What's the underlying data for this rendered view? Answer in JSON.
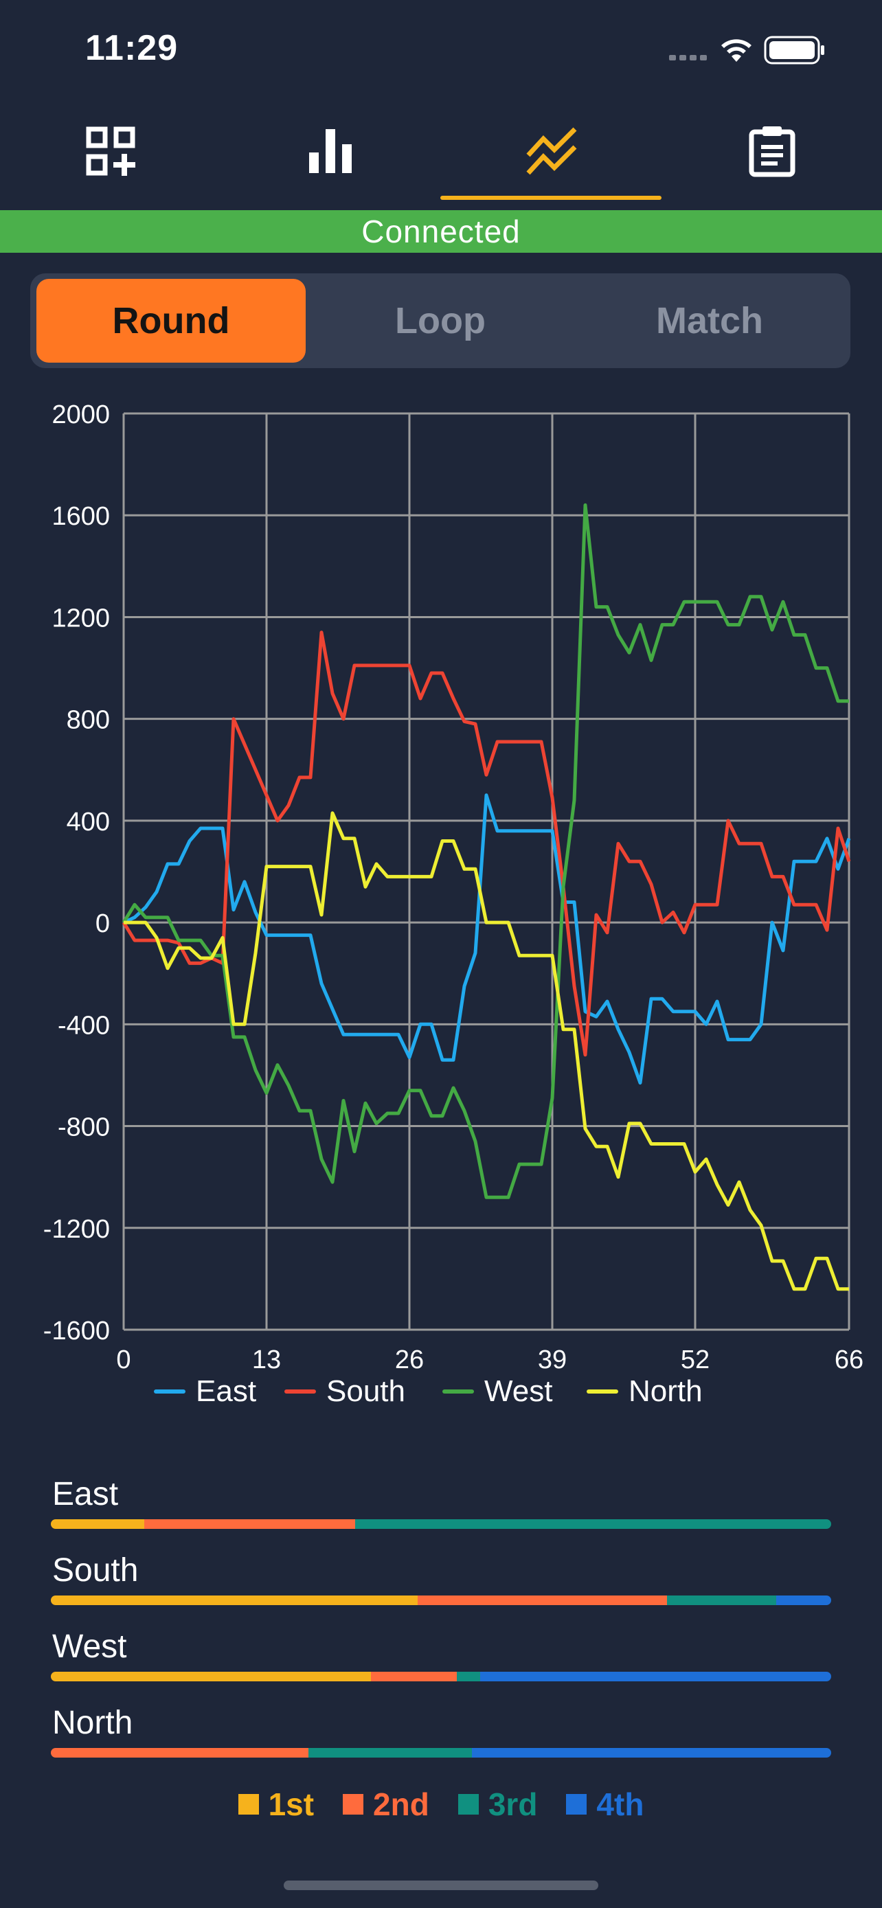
{
  "status_bar": {
    "time": "11:29"
  },
  "tabs": [
    {
      "icon": "grid-plus-icon",
      "active": false
    },
    {
      "icon": "bar-chart-icon",
      "active": false
    },
    {
      "icon": "trend-lines-icon",
      "active": true
    },
    {
      "icon": "clipboard-icon",
      "active": false
    }
  ],
  "connection": {
    "status": "Connected"
  },
  "segments": {
    "round": "Round",
    "loop": "Loop",
    "match": "Match",
    "selected": "Round"
  },
  "colors": {
    "accent": "#f6b21c",
    "selected_segment": "#ff7722",
    "east": "#22aaee",
    "south": "#ee4433",
    "west": "#44aa44",
    "north": "#eeee33",
    "first": "#f6b21c",
    "second": "#ff6b3d",
    "third": "#109080",
    "fourth": "#1e6fd8"
  },
  "chart_data": {
    "type": "line",
    "xlim": [
      0,
      66
    ],
    "ylim": [
      -1600,
      2000
    ],
    "x_ticks": [
      "0",
      "13",
      "26",
      "39",
      "52",
      "66"
    ],
    "y_ticks": [
      "2000",
      "1600",
      "1200",
      "800",
      "400",
      "0",
      "-400",
      "-800",
      "-1200",
      "-1600"
    ],
    "grid": true,
    "legend_position": "bottom",
    "series": [
      {
        "name": "East",
        "color": "#22aaee",
        "points": [
          [
            0,
            0
          ],
          [
            1,
            20
          ],
          [
            2,
            60
          ],
          [
            3,
            120
          ],
          [
            4,
            230
          ],
          [
            5,
            230
          ],
          [
            6,
            320
          ],
          [
            7,
            370
          ],
          [
            8,
            370
          ],
          [
            9,
            370
          ],
          [
            10,
            50
          ],
          [
            11,
            160
          ],
          [
            12,
            40
          ],
          [
            13,
            -50
          ],
          [
            14,
            -50
          ],
          [
            15,
            -50
          ],
          [
            16,
            -50
          ],
          [
            17,
            -50
          ],
          [
            18,
            -240
          ],
          [
            19,
            -340
          ],
          [
            20,
            -440
          ],
          [
            21,
            -440
          ],
          [
            22,
            -440
          ],
          [
            23,
            -440
          ],
          [
            24,
            -440
          ],
          [
            25,
            -440
          ],
          [
            26,
            -530
          ],
          [
            27,
            -400
          ],
          [
            28,
            -400
          ],
          [
            29,
            -540
          ],
          [
            30,
            -540
          ],
          [
            31,
            -250
          ],
          [
            32,
            -120
          ],
          [
            33,
            500
          ],
          [
            34,
            360
          ],
          [
            35,
            360
          ],
          [
            36,
            360
          ],
          [
            37,
            360
          ],
          [
            38,
            360
          ],
          [
            39,
            360
          ],
          [
            40,
            80
          ],
          [
            41,
            80
          ],
          [
            42,
            -350
          ],
          [
            43,
            -370
          ],
          [
            44,
            -310
          ],
          [
            45,
            -420
          ],
          [
            46,
            -510
          ],
          [
            47,
            -630
          ],
          [
            48,
            -300
          ],
          [
            49,
            -300
          ],
          [
            50,
            -350
          ],
          [
            51,
            -350
          ],
          [
            52,
            -350
          ],
          [
            53,
            -400
          ],
          [
            54,
            -310
          ],
          [
            55,
            -460
          ],
          [
            56,
            -460
          ],
          [
            57,
            -460
          ],
          [
            58,
            -400
          ],
          [
            59,
            0
          ],
          [
            60,
            -110
          ],
          [
            61,
            240
          ],
          [
            62,
            240
          ],
          [
            63,
            240
          ],
          [
            64,
            330
          ],
          [
            65,
            210
          ],
          [
            66,
            330
          ]
        ]
      },
      {
        "name": "South",
        "color": "#ee4433",
        "points": [
          [
            0,
            0
          ],
          [
            1,
            -70
          ],
          [
            2,
            -70
          ],
          [
            3,
            -70
          ],
          [
            4,
            -70
          ],
          [
            5,
            -80
          ],
          [
            6,
            -160
          ],
          [
            7,
            -160
          ],
          [
            8,
            -140
          ],
          [
            9,
            -160
          ],
          [
            10,
            800
          ],
          [
            11,
            700
          ],
          [
            12,
            600
          ],
          [
            13,
            500
          ],
          [
            14,
            400
          ],
          [
            15,
            460
          ],
          [
            16,
            570
          ],
          [
            17,
            570
          ],
          [
            18,
            1140
          ],
          [
            19,
            900
          ],
          [
            20,
            800
          ],
          [
            21,
            1010
          ],
          [
            22,
            1010
          ],
          [
            23,
            1010
          ],
          [
            24,
            1010
          ],
          [
            25,
            1010
          ],
          [
            26,
            1010
          ],
          [
            27,
            880
          ],
          [
            28,
            980
          ],
          [
            29,
            980
          ],
          [
            30,
            880
          ],
          [
            31,
            790
          ],
          [
            32,
            780
          ],
          [
            33,
            580
          ],
          [
            34,
            710
          ],
          [
            35,
            710
          ],
          [
            36,
            710
          ],
          [
            37,
            710
          ],
          [
            38,
            710
          ],
          [
            39,
            490
          ],
          [
            40,
            140
          ],
          [
            41,
            -250
          ],
          [
            42,
            -520
          ],
          [
            43,
            30
          ],
          [
            44,
            -40
          ],
          [
            45,
            310
          ],
          [
            46,
            240
          ],
          [
            47,
            240
          ],
          [
            48,
            150
          ],
          [
            49,
            0
          ],
          [
            50,
            40
          ],
          [
            51,
            -40
          ],
          [
            52,
            70
          ],
          [
            53,
            70
          ],
          [
            54,
            70
          ],
          [
            55,
            400
          ],
          [
            56,
            310
          ],
          [
            57,
            310
          ],
          [
            58,
            310
          ],
          [
            59,
            180
          ],
          [
            60,
            180
          ],
          [
            61,
            70
          ],
          [
            62,
            70
          ],
          [
            63,
            70
          ],
          [
            64,
            -30
          ],
          [
            65,
            370
          ],
          [
            66,
            240
          ]
        ]
      },
      {
        "name": "West",
        "color": "#44aa44",
        "points": [
          [
            0,
            0
          ],
          [
            1,
            70
          ],
          [
            2,
            20
          ],
          [
            3,
            20
          ],
          [
            4,
            20
          ],
          [
            5,
            -70
          ],
          [
            6,
            -70
          ],
          [
            7,
            -70
          ],
          [
            8,
            -130
          ],
          [
            9,
            -130
          ],
          [
            10,
            -450
          ],
          [
            11,
            -450
          ],
          [
            12,
            -580
          ],
          [
            13,
            -670
          ],
          [
            14,
            -560
          ],
          [
            15,
            -640
          ],
          [
            16,
            -740
          ],
          [
            17,
            -740
          ],
          [
            18,
            -930
          ],
          [
            19,
            -1020
          ],
          [
            20,
            -700
          ],
          [
            21,
            -900
          ],
          [
            22,
            -710
          ],
          [
            23,
            -790
          ],
          [
            24,
            -750
          ],
          [
            25,
            -750
          ],
          [
            26,
            -660
          ],
          [
            27,
            -660
          ],
          [
            28,
            -760
          ],
          [
            29,
            -760
          ],
          [
            30,
            -650
          ],
          [
            31,
            -740
          ],
          [
            32,
            -860
          ],
          [
            33,
            -1080
          ],
          [
            34,
            -1080
          ],
          [
            35,
            -1080
          ],
          [
            36,
            -950
          ],
          [
            37,
            -950
          ],
          [
            38,
            -950
          ],
          [
            39,
            -690
          ],
          [
            40,
            140
          ],
          [
            41,
            480
          ],
          [
            42,
            1640
          ],
          [
            43,
            1240
          ],
          [
            44,
            1240
          ],
          [
            45,
            1130
          ],
          [
            46,
            1060
          ],
          [
            47,
            1170
          ],
          [
            48,
            1030
          ],
          [
            49,
            1170
          ],
          [
            50,
            1170
          ],
          [
            51,
            1260
          ],
          [
            52,
            1260
          ],
          [
            53,
            1260
          ],
          [
            54,
            1260
          ],
          [
            55,
            1170
          ],
          [
            56,
            1170
          ],
          [
            57,
            1280
          ],
          [
            58,
            1280
          ],
          [
            59,
            1150
          ],
          [
            60,
            1260
          ],
          [
            61,
            1130
          ],
          [
            62,
            1130
          ],
          [
            63,
            1000
          ],
          [
            64,
            1000
          ],
          [
            65,
            870
          ],
          [
            66,
            870
          ]
        ]
      },
      {
        "name": "North",
        "color": "#eeee33",
        "points": [
          [
            0,
            0
          ],
          [
            1,
            0
          ],
          [
            2,
            0
          ],
          [
            3,
            -60
          ],
          [
            4,
            -180
          ],
          [
            5,
            -100
          ],
          [
            6,
            -100
          ],
          [
            7,
            -140
          ],
          [
            8,
            -140
          ],
          [
            9,
            -60
          ],
          [
            10,
            -400
          ],
          [
            11,
            -400
          ],
          [
            12,
            -120
          ],
          [
            13,
            220
          ],
          [
            14,
            220
          ],
          [
            15,
            220
          ],
          [
            16,
            220
          ],
          [
            17,
            220
          ],
          [
            18,
            30
          ],
          [
            19,
            430
          ],
          [
            20,
            330
          ],
          [
            21,
            330
          ],
          [
            22,
            140
          ],
          [
            23,
            230
          ],
          [
            24,
            180
          ],
          [
            25,
            180
          ],
          [
            26,
            180
          ],
          [
            27,
            180
          ],
          [
            28,
            180
          ],
          [
            29,
            320
          ],
          [
            30,
            320
          ],
          [
            31,
            210
          ],
          [
            32,
            210
          ],
          [
            33,
            0
          ],
          [
            34,
            0
          ],
          [
            35,
            0
          ],
          [
            36,
            -130
          ],
          [
            37,
            -130
          ],
          [
            38,
            -130
          ],
          [
            39,
            -130
          ],
          [
            40,
            -420
          ],
          [
            41,
            -420
          ],
          [
            42,
            -810
          ],
          [
            43,
            -880
          ],
          [
            44,
            -880
          ],
          [
            45,
            -1000
          ],
          [
            46,
            -790
          ],
          [
            47,
            -790
          ],
          [
            48,
            -870
          ],
          [
            49,
            -870
          ],
          [
            50,
            -870
          ],
          [
            51,
            -870
          ],
          [
            52,
            -980
          ],
          [
            53,
            -930
          ],
          [
            54,
            -1030
          ],
          [
            55,
            -1110
          ],
          [
            56,
            -1020
          ],
          [
            57,
            -1130
          ],
          [
            58,
            -1190
          ],
          [
            59,
            -1330
          ],
          [
            60,
            -1330
          ],
          [
            61,
            -1440
          ],
          [
            62,
            -1440
          ],
          [
            63,
            -1320
          ],
          [
            64,
            -1320
          ],
          [
            65,
            -1440
          ],
          [
            66,
            -1440
          ]
        ]
      }
    ]
  },
  "placements": [
    {
      "name": "East",
      "shares": [
        0.12,
        0.27,
        0.61,
        0
      ]
    },
    {
      "name": "South",
      "shares": [
        0.47,
        0.32,
        0.14,
        0.07
      ]
    },
    {
      "name": "West",
      "shares": [
        0.41,
        0.11,
        0.03,
        0.45
      ]
    },
    {
      "name": "North",
      "shares": [
        0,
        0.33,
        0.21,
        0.46
      ]
    }
  ],
  "rank_legend": [
    "1st",
    "2nd",
    "3rd",
    "4th"
  ]
}
